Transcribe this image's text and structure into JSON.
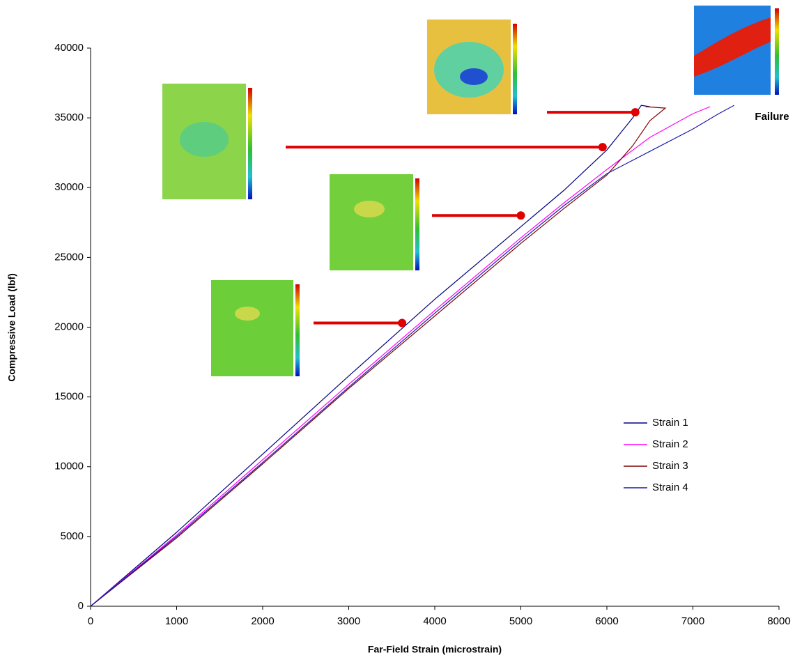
{
  "chart_data": {
    "type": "line",
    "x_label": "Far-Field Strain (microstrain)",
    "y_label": "Compressive Load (lbf)",
    "xlim": [
      0,
      8000
    ],
    "ylim": [
      0,
      40000
    ],
    "xticks": [
      0,
      1000,
      2000,
      3000,
      4000,
      5000,
      6000,
      7000,
      8000
    ],
    "yticks": [
      0,
      5000,
      10000,
      15000,
      20000,
      25000,
      30000,
      35000,
      40000
    ],
    "grid": false,
    "legend": "right",
    "series": [
      {
        "name": "Strain 1",
        "color": "#000080",
        "x": [
          0,
          1000,
          2000,
          3000,
          4000,
          5000,
          5500,
          6000,
          6300,
          6400,
          6500
        ],
        "values": [
          0,
          5300,
          10900,
          16500,
          22000,
          27200,
          29800,
          32700,
          35000,
          35900,
          35800
        ]
      },
      {
        "name": "Strain 2",
        "color": "#ff00ff",
        "x": [
          0,
          1000,
          2000,
          3000,
          4000,
          5000,
          5500,
          6000,
          6500,
          7000,
          7200
        ],
        "values": [
          0,
          5100,
          10500,
          15900,
          21200,
          26400,
          28900,
          31300,
          33600,
          35300,
          35800
        ]
      },
      {
        "name": "Strain 3",
        "color": "#800000",
        "x": [
          0,
          1000,
          2000,
          3000,
          4000,
          5000,
          5500,
          6000,
          6300,
          6500,
          6680,
          6450
        ],
        "values": [
          0,
          4900,
          10200,
          15600,
          20800,
          26000,
          28500,
          30900,
          33000,
          34800,
          35700,
          35800
        ]
      },
      {
        "name": "Strain 4",
        "color": "#1a1aa8",
        "x": [
          0,
          1000,
          2000,
          3000,
          4000,
          5000,
          5500,
          6000,
          6500,
          7000,
          7300,
          7480
        ],
        "values": [
          0,
          5000,
          10300,
          15700,
          21000,
          26200,
          28700,
          31000,
          32600,
          34200,
          35300,
          35900
        ]
      }
    ],
    "markers": {
      "color": "#e00000",
      "x": [
        3620,
        5000,
        5950,
        6330
      ],
      "values": [
        20300,
        28000,
        32900,
        35400
      ]
    },
    "annotation": "Failure"
  }
}
